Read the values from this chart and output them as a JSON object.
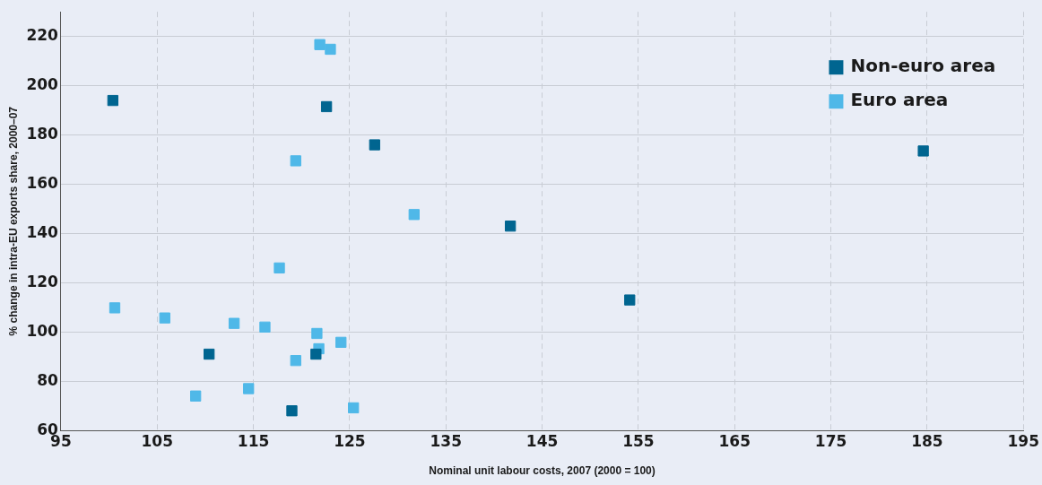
{
  "chart_data": {
    "type": "scatter",
    "xlabel": "Nominal unit labour costs, 2007 (2000 = 100)",
    "ylabel": "% change in intra-EU exports share, 2000–07",
    "xlim": [
      95,
      195
    ],
    "xticks": [
      95,
      105,
      115,
      125,
      135,
      145,
      155,
      165,
      175,
      185,
      195
    ],
    "ylim": [
      60,
      230
    ],
    "yticks": [
      60,
      80,
      100,
      120,
      140,
      160,
      180,
      200,
      220
    ],
    "grid": true,
    "legend": "top right",
    "marker": "square",
    "series": [
      {
        "name": "Non-euro area",
        "color": "#006590",
        "x": [
          100.4,
          122.6,
          127.6,
          141.7,
          154.1,
          184.6,
          110.4,
          121.5,
          119
        ],
        "values": [
          194,
          191.5,
          176,
          143,
          113,
          173.5,
          91,
          91,
          68
        ]
      },
      {
        "name": "Euro area",
        "color": "#4fb8e8",
        "x": [
          121.9,
          123,
          119.4,
          131.7,
          117.7,
          100.6,
          105.8,
          113,
          116.2,
          121.6,
          124.1,
          121.8,
          119.4,
          109,
          114.5,
          125.4
        ],
        "values": [
          216.7,
          214.8,
          169.5,
          147.7,
          126,
          109.8,
          105.7,
          103.5,
          102,
          99.4,
          95.8,
          93.2,
          88.4,
          74,
          77,
          69.2
        ]
      }
    ]
  }
}
